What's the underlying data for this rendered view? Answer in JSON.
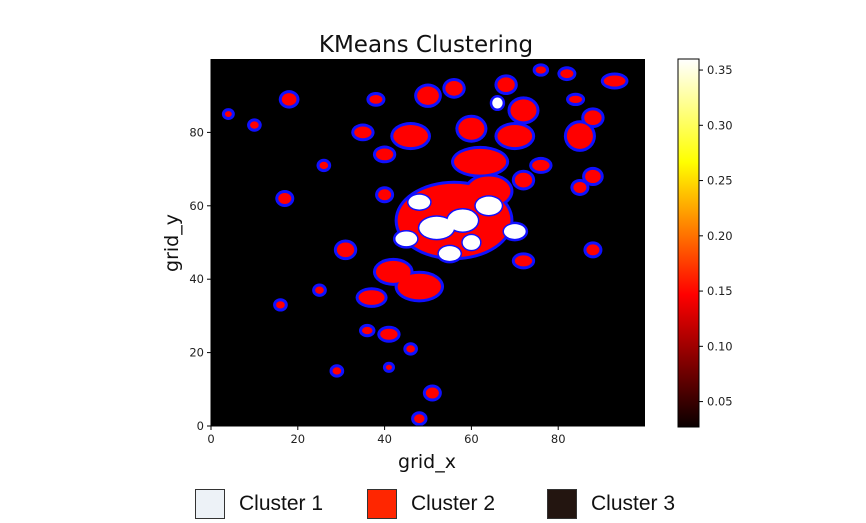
{
  "chart_data": {
    "type": "heatmap",
    "title": "KMeans Clustering",
    "xlabel": "grid_x",
    "ylabel": "grid_y",
    "xlim": [
      0,
      100
    ],
    "ylim": [
      0,
      100
    ],
    "x_ticks": [
      0,
      20,
      40,
      60,
      80
    ],
    "y_ticks": [
      0,
      20,
      40,
      60,
      80
    ],
    "colorbar": {
      "colormap": "hot",
      "range": [
        0.027,
        0.36
      ],
      "ticks": [
        0.05,
        0.1,
        0.15,
        0.2,
        0.25,
        0.3,
        0.35
      ],
      "tick_labels": [
        "0.05",
        "0.10",
        "0.15",
        "0.20",
        "0.25",
        "0.30",
        "0.35"
      ]
    },
    "contour_color": "#1010ff",
    "clusters": [
      {
        "name": "Cluster 1",
        "color": "#ffffff",
        "swatch": "#edf2f7",
        "blobs": [
          [
            52,
            54,
            4,
            3
          ],
          [
            58,
            56,
            3.5,
            3
          ],
          [
            64,
            60,
            3,
            2.5
          ],
          [
            48,
            61,
            2.5,
            2
          ],
          [
            70,
            53,
            2.5,
            2
          ],
          [
            55,
            47,
            2.5,
            2
          ],
          [
            66,
            88,
            1.2,
            1.5
          ],
          [
            45,
            51,
            2.5,
            2
          ],
          [
            60,
            50,
            2,
            2
          ]
        ]
      },
      {
        "name": "Cluster 2",
        "color": "#ff0000",
        "swatch": "#ff2600",
        "blobs": [
          [
            56,
            56,
            13,
            10
          ],
          [
            62,
            72,
            6,
            3.5
          ],
          [
            64,
            64,
            5,
            4
          ],
          [
            48,
            38,
            5,
            3.5
          ],
          [
            42,
            42,
            4,
            3
          ],
          [
            46,
            79,
            4,
            3
          ],
          [
            70,
            79,
            4,
            3
          ],
          [
            60,
            81,
            3,
            3
          ],
          [
            85,
            79,
            3,
            3.5
          ],
          [
            72,
            86,
            3,
            3
          ],
          [
            50,
            90,
            2.5,
            2.5
          ],
          [
            56,
            92,
            2,
            2
          ],
          [
            68,
            93,
            2,
            2
          ],
          [
            37,
            35,
            3,
            2
          ],
          [
            31,
            48,
            2,
            2
          ],
          [
            72,
            45,
            2,
            1.5
          ],
          [
            88,
            68,
            1.8,
            1.8
          ],
          [
            85,
            65,
            1.5,
            1.5
          ],
          [
            88,
            48,
            1.5,
            1.5
          ],
          [
            93,
            94,
            2.5,
            1.5
          ],
          [
            82,
            96,
            1.5,
            1.2
          ],
          [
            76,
            97,
            1.2,
            1
          ],
          [
            18,
            89,
            1.7,
            1.7
          ],
          [
            38,
            89,
            1.5,
            1.2
          ],
          [
            35,
            80,
            2,
            1.6
          ],
          [
            40,
            74,
            2,
            1.6
          ],
          [
            26,
            71,
            1,
            1
          ],
          [
            17,
            62,
            1.5,
            1.5
          ],
          [
            40,
            63,
            1.5,
            1.5
          ],
          [
            41,
            25,
            2,
            1.5
          ],
          [
            36,
            26,
            1.2,
            1
          ],
          [
            46,
            21,
            1,
            1
          ],
          [
            51,
            9,
            1.5,
            1.5
          ],
          [
            48,
            2,
            1.2,
            1.2
          ],
          [
            16,
            33,
            1,
            1
          ],
          [
            25,
            37,
            1,
            1
          ],
          [
            29,
            15,
            1,
            1
          ],
          [
            41,
            16,
            0.7,
            0.7
          ],
          [
            10,
            82,
            1,
            1
          ],
          [
            4,
            85,
            0.8,
            0.8
          ],
          [
            84,
            89,
            1.5,
            1
          ],
          [
            88,
            84,
            2,
            2
          ],
          [
            72,
            67,
            2,
            2
          ],
          [
            76,
            71,
            2,
            1.5
          ]
        ]
      },
      {
        "name": "Cluster 3",
        "color": "#000000",
        "swatch": "#231510"
      }
    ]
  }
}
